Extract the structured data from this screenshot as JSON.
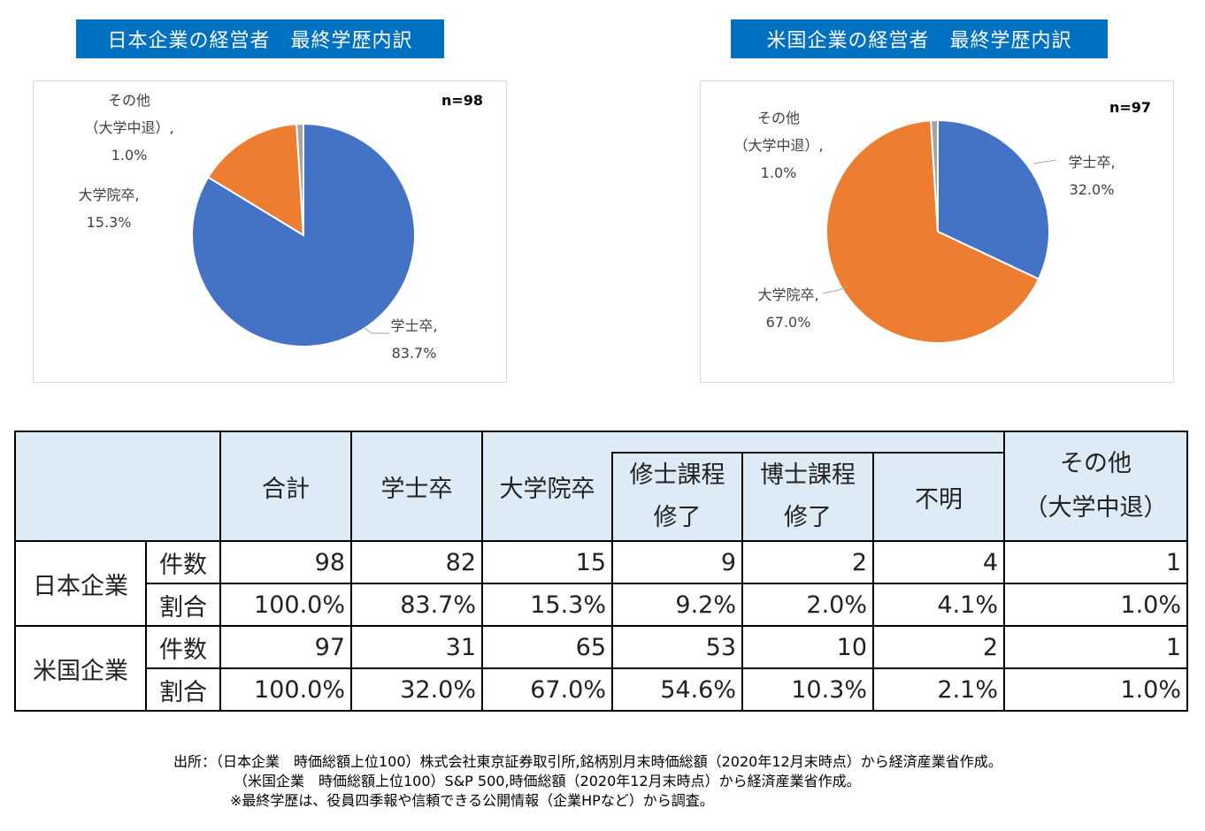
{
  "charts": {
    "japan_title": "日本企業の経営者　最終学歴内訳",
    "us_title": "米国企業の経営者　最終学歴内訳"
  },
  "chart_data": [
    {
      "type": "pie",
      "title": "日本企業の経営者　最終学歴内訳",
      "n_label": "n=98",
      "slices": [
        {
          "label": "学士卒,",
          "value": 83.7,
          "value_label": "83.7%",
          "color": "#4472c4"
        },
        {
          "label": "大学院卒,",
          "value": 15.3,
          "value_label": "15.3%",
          "color": "#ed7d31"
        },
        {
          "label": "その他\n（大学中退）,",
          "value": 1.0,
          "value_label": "1.0%",
          "color": "#a5a5a5"
        }
      ]
    },
    {
      "type": "pie",
      "title": "米国企業の経営者　最終学歴内訳",
      "n_label": "n=97",
      "slices": [
        {
          "label": "学士卒,",
          "value": 32.0,
          "value_label": "32.0%",
          "color": "#4472c4"
        },
        {
          "label": "大学院卒,",
          "value": 67.0,
          "value_label": "67.0%",
          "color": "#ed7d31"
        },
        {
          "label": "その他\n（大学中退）,",
          "value": 1.0,
          "value_label": "1.0%",
          "color": "#a5a5a5"
        }
      ]
    }
  ],
  "table": {
    "headers": {
      "total": "合計",
      "bachelor": "学士卒",
      "graduate": "大学院卒",
      "master_1": "修士課程",
      "master_2": "修了",
      "doctor_1": "博士課程",
      "doctor_2": "修了",
      "unknown": "不明",
      "other_1": "その他",
      "other_2": "（大学中退）"
    },
    "groups": [
      {
        "name": "日本企業",
        "rows": [
          {
            "label": "件数",
            "values": [
              "98",
              "82",
              "15",
              "9",
              "2",
              "4",
              "1"
            ]
          },
          {
            "label": "割合",
            "values": [
              "100.0%",
              "83.7%",
              "15.3%",
              "9.2%",
              "2.0%",
              "4.1%",
              "1.0%"
            ]
          }
        ]
      },
      {
        "name": "米国企業",
        "rows": [
          {
            "label": "件数",
            "values": [
              "97",
              "31",
              "65",
              "53",
              "10",
              "2",
              "1"
            ]
          },
          {
            "label": "割合",
            "values": [
              "100.0%",
              "32.0%",
              "67.0%",
              "54.6%",
              "10.3%",
              "2.1%",
              "1.0%"
            ]
          }
        ]
      }
    ]
  },
  "notes": {
    "line1": "出所：（日本企業　時価総額上位100）株式会社東京証券取引所,銘柄別月末時価総額（2020年12月末時点）から経済産業省作成。",
    "line2": "（米国企業　時価総額上位100）S&P 500,時価総額（2020年12月末時点）から経済産業省作成。",
    "line3": "※最終学歴は、役員四季報や信頼できる公開情報（企業HPなど）から調査。"
  }
}
